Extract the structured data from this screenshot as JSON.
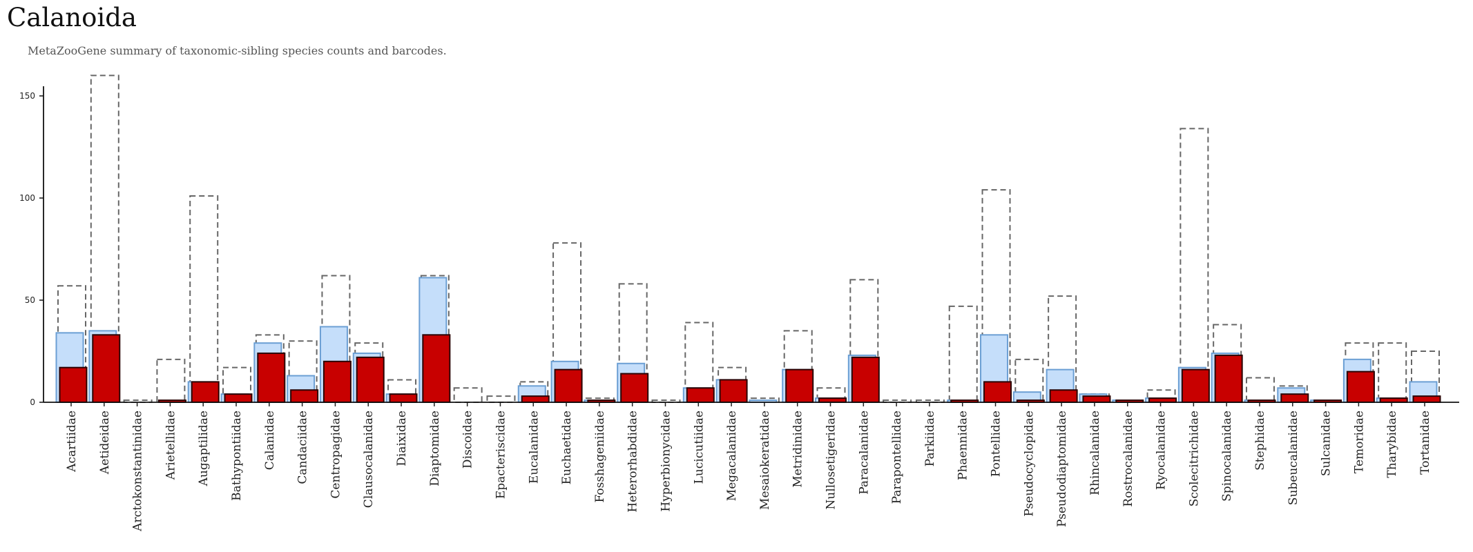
{
  "chart_data": {
    "type": "bar",
    "title": "Calanoida",
    "subtitle": "MetaZooGene summary of taxonomic-sibling species counts and barcodes.",
    "ylim": [
      0,
      160
    ],
    "yticks": [
      0,
      50,
      100,
      150
    ],
    "grid": false,
    "colors": {
      "total_outline": "#666666",
      "barcoded_fill": "#c5defa",
      "barcoded_stroke": "#6b9fd4",
      "primary_fill": "#c80000",
      "primary_stroke": "#2a0000"
    },
    "categories": [
      "Acartiidae",
      "Aetideidae",
      "Arctokonstantinidae",
      "Arietellidae",
      "Augaptilidae",
      "Bathypontiidae",
      "Calanidae",
      "Candaciidae",
      "Centropagidae",
      "Clausocalanidae",
      "Diaixidae",
      "Diaptomidae",
      "Discoidae",
      "Epacteriscidae",
      "Eucalanidae",
      "Euchaetidae",
      "Fosshageniidae",
      "Heterorhabdidae",
      "Hyperbionycidae",
      "Lucicutiidae",
      "Megacalanidae",
      "Mesaiokeratidae",
      "Metridinidae",
      "Nullosetigeridae",
      "Paracalanidae",
      "Parapontellidae",
      "Parkiidae",
      "Phaennidae",
      "Pontellidae",
      "Pseudocyclopidae",
      "Pseudodiaptomidae",
      "Rhincalanidae",
      "Rostrocalanidae",
      "Ryocalanidae",
      "Scolecitrichidae",
      "Spinocalanidae",
      "Stephidae",
      "Subeucalanidae",
      "Sulcanidae",
      "Temoridae",
      "Tharybidae",
      "Tortanidae"
    ],
    "series": [
      {
        "values": [
          57,
          160,
          1,
          21,
          101,
          17,
          33,
          30,
          62,
          29,
          11,
          62,
          7,
          3,
          10,
          78,
          2,
          58,
          1,
          39,
          17,
          2,
          35,
          7,
          60,
          1,
          1,
          47,
          104,
          21,
          52,
          4,
          1,
          6,
          134,
          38,
          12,
          8,
          1,
          29,
          29,
          25
        ]
      },
      {
        "values": [
          34,
          35,
          0,
          0,
          10,
          4,
          29,
          13,
          37,
          24,
          4,
          61,
          0,
          0,
          8,
          20,
          1,
          19,
          0,
          7,
          11,
          1,
          16,
          2,
          23,
          0,
          0,
          1,
          33,
          5,
          16,
          4,
          1,
          2,
          17,
          24,
          1,
          7,
          1,
          21,
          2,
          10
        ]
      },
      {
        "values": [
          17,
          33,
          0,
          1,
          10,
          4,
          24,
          6,
          20,
          22,
          4,
          33,
          0,
          0,
          3,
          16,
          1,
          14,
          0,
          7,
          11,
          0,
          16,
          2,
          22,
          0,
          0,
          1,
          10,
          1,
          6,
          3,
          1,
          2,
          16,
          23,
          1,
          4,
          1,
          15,
          2,
          3
        ]
      }
    ]
  }
}
